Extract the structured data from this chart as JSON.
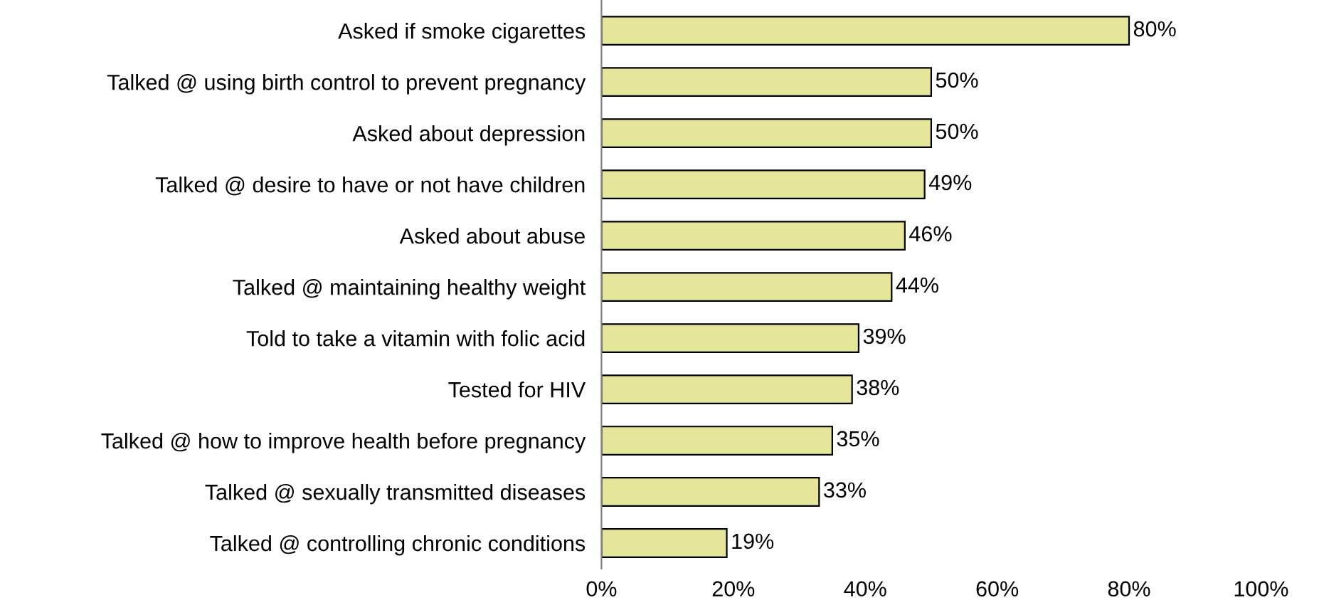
{
  "chart_data": {
    "type": "bar",
    "orientation": "horizontal",
    "categories": [
      "Asked if smoke cigarettes",
      "Talked @ using birth control to prevent pregnancy",
      "Asked about depression",
      "Talked @ desire to have or not have children",
      "Asked about abuse",
      "Talked @ maintaining healthy weight",
      "Told to take a vitamin with folic acid",
      "Tested for HIV",
      "Talked @ how to improve health before pregnancy",
      "Talked @ sexually transmitted diseases",
      "Talked @ controlling chronic conditions"
    ],
    "values": [
      80,
      50,
      50,
      49,
      46,
      44,
      39,
      38,
      35,
      33,
      19
    ],
    "value_labels": [
      "80%",
      "50%",
      "50%",
      "49%",
      "46%",
      "44%",
      "39%",
      "38%",
      "35%",
      "33%",
      "19%"
    ],
    "color": "#e5e699",
    "xlim": [
      0,
      100
    ],
    "xticks": [
      {
        "value": 0,
        "label": "0%"
      },
      {
        "value": 20,
        "label": "20%"
      },
      {
        "value": 40,
        "label": "40%"
      },
      {
        "value": 60,
        "label": "60%"
      },
      {
        "value": 80,
        "label": "80%"
      },
      {
        "value": 100,
        "label": "100%"
      }
    ],
    "grid": false,
    "legend": false
  }
}
